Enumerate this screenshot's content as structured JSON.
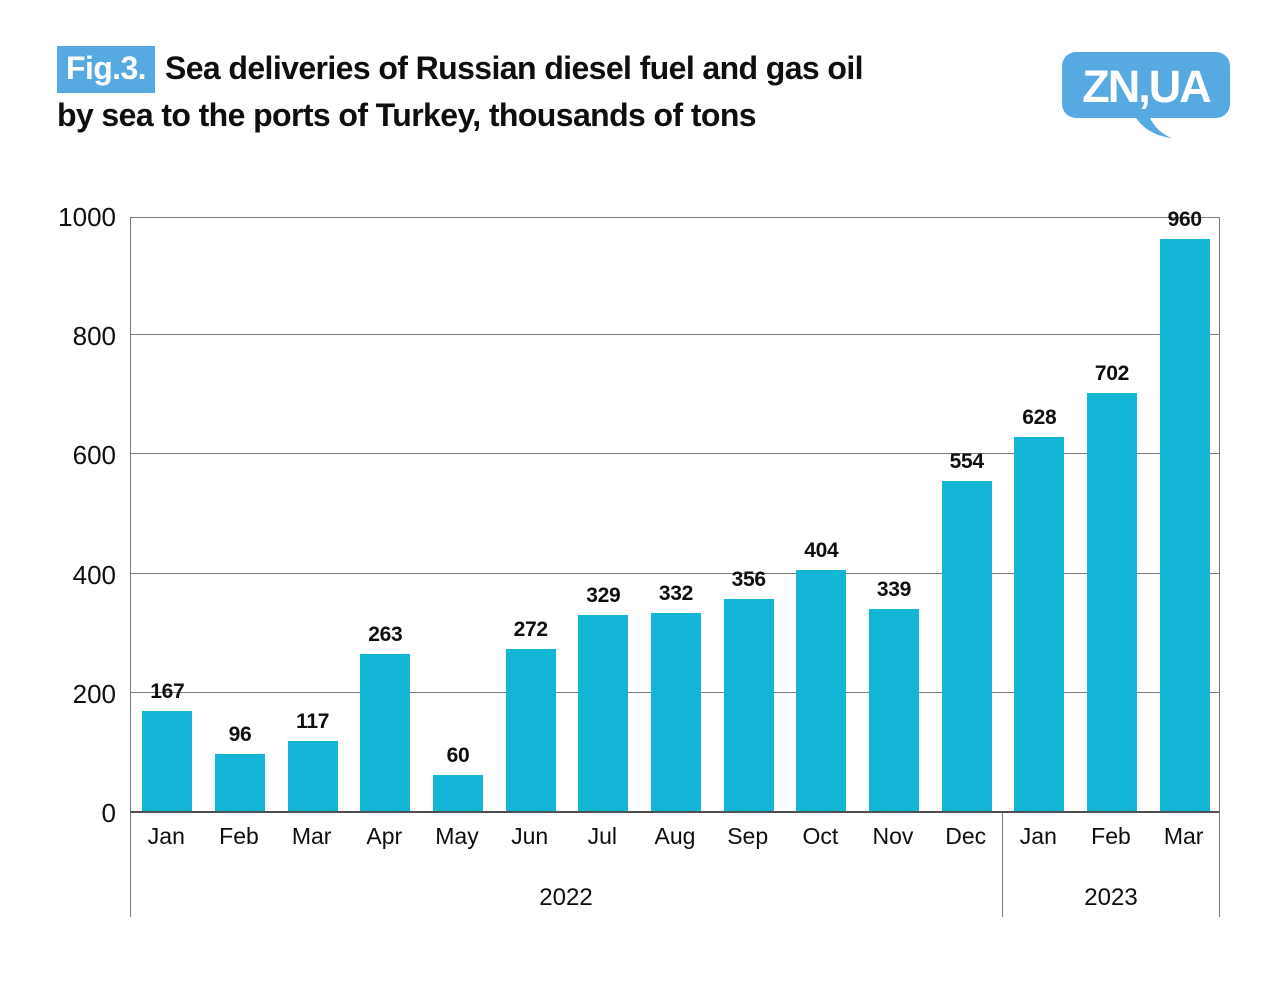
{
  "header": {
    "fig_label": "Fig.3.",
    "title_line1": "Sea deliveries of Russian diesel fuel and gas oil",
    "title_line2": "by sea to the ports of Turkey, thousands of tons",
    "logo_text": "ZN,UA"
  },
  "colors": {
    "bar": "#12b5d5",
    "accent_blue": "#57aae1",
    "gridline": "#7c7c7c",
    "axis": "#4f4f4f",
    "text": "#0e0e0e"
  },
  "chart_data": {
    "type": "bar",
    "title": "Sea deliveries of Russian diesel fuel and gas oil by sea to the ports of Turkey, thousands of tons",
    "categories": [
      "Jan",
      "Feb",
      "Mar",
      "Apr",
      "May",
      "Jun",
      "Jul",
      "Aug",
      "Sep",
      "Oct",
      "Nov",
      "Dec",
      "Jan",
      "Feb",
      "Mar"
    ],
    "values": [
      167,
      96,
      117,
      263,
      60,
      272,
      329,
      332,
      356,
      404,
      339,
      554,
      628,
      702,
      960
    ],
    "groups": [
      {
        "label": "2022",
        "span": 12
      },
      {
        "label": "2023",
        "span": 3
      }
    ],
    "ylabel": "",
    "xlabel": "",
    "ylim": [
      0,
      1000
    ],
    "yticks": [
      0,
      200,
      400,
      600,
      800,
      1000
    ],
    "grid": true,
    "legend_position": "none",
    "bar_color": "#12b5d5",
    "data_labels": true
  }
}
